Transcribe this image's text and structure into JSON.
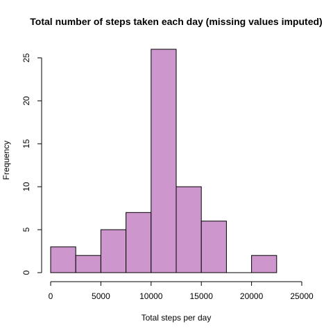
{
  "chart_data": {
    "type": "bar",
    "title": "Total number of steps taken each day (missing values imputed)",
    "xlabel": "Total steps per day",
    "ylabel": "Frequency",
    "bin_edges": [
      0,
      2500,
      5000,
      7500,
      10000,
      12500,
      15000,
      17500,
      20000,
      22500
    ],
    "values": [
      3,
      2,
      5,
      7,
      26,
      10,
      6,
      0,
      2
    ],
    "xlim": [
      0,
      25000
    ],
    "ylim": [
      0,
      26
    ],
    "x_ticks": [
      0,
      5000,
      10000,
      15000,
      20000,
      25000
    ],
    "y_ticks": [
      0,
      5,
      10,
      15,
      20,
      25
    ],
    "bar_color": "#cd96cd",
    "grid": false,
    "legend": "none"
  }
}
